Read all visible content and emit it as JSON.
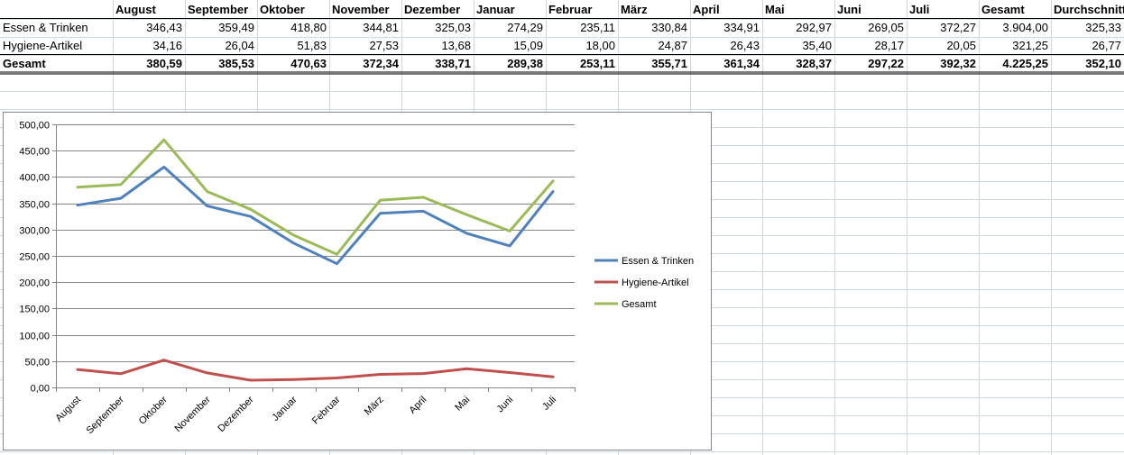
{
  "table": {
    "headers": [
      "",
      "August",
      "September",
      "Oktober",
      "November",
      "Dezember",
      "Januar",
      "Februar",
      "März",
      "April",
      "Mai",
      "Juni",
      "Juli",
      "Gesamt",
      "Durchschnitt"
    ],
    "rows": [
      {
        "label": "Essen & Trinken",
        "values": [
          "346,43",
          "359,49",
          "418,80",
          "344,81",
          "325,03",
          "274,29",
          "235,11",
          "330,84",
          "334,91",
          "292,97",
          "269,05",
          "372,27",
          "3.904,00",
          "325,33"
        ],
        "bold": false
      },
      {
        "label": "Hygiene-Artikel",
        "values": [
          "34,16",
          "26,04",
          "51,83",
          "27,53",
          "13,68",
          "15,09",
          "18,00",
          "24,87",
          "26,43",
          "35,40",
          "28,17",
          "20,05",
          "321,25",
          "26,77"
        ],
        "bold": false
      },
      {
        "label": "Gesamt",
        "values": [
          "380,59",
          "385,53",
          "470,63",
          "372,34",
          "338,71",
          "289,38",
          "253,11",
          "355,71",
          "361,34",
          "328,37",
          "297,22",
          "392,32",
          "4.225,25",
          "352,10"
        ],
        "bold": true
      }
    ]
  },
  "chart_data": {
    "type": "line",
    "title": "",
    "xlabel": "",
    "ylabel": "",
    "categories": [
      "August",
      "September",
      "Oktober",
      "November",
      "Dezember",
      "Januar",
      "Februar",
      "März",
      "April",
      "Mai",
      "Juni",
      "Juli"
    ],
    "series": [
      {
        "name": "Essen & Trinken",
        "color": "#4f81bd",
        "values": [
          346.43,
          359.49,
          418.8,
          344.81,
          325.03,
          274.29,
          235.11,
          330.84,
          334.91,
          292.97,
          269.05,
          372.27
        ]
      },
      {
        "name": "Hygiene-Artikel",
        "color": "#c0504d",
        "values": [
          34.16,
          26.04,
          51.83,
          27.53,
          13.68,
          15.09,
          18.0,
          24.87,
          26.43,
          35.4,
          28.17,
          20.05
        ]
      },
      {
        "name": "Gesamt",
        "color": "#9bbb59",
        "values": [
          380.59,
          385.53,
          470.63,
          372.34,
          338.71,
          289.38,
          253.11,
          355.71,
          361.34,
          328.37,
          297.22,
          392.32
        ]
      }
    ],
    "ylim": [
      0,
      500
    ],
    "ytick_step": 50,
    "ytick_labels": [
      "0,00",
      "50,00",
      "100,00",
      "150,00",
      "200,00",
      "250,00",
      "300,00",
      "350,00",
      "400,00",
      "450,00",
      "500,00"
    ],
    "grid": true,
    "legend_position": "right"
  }
}
